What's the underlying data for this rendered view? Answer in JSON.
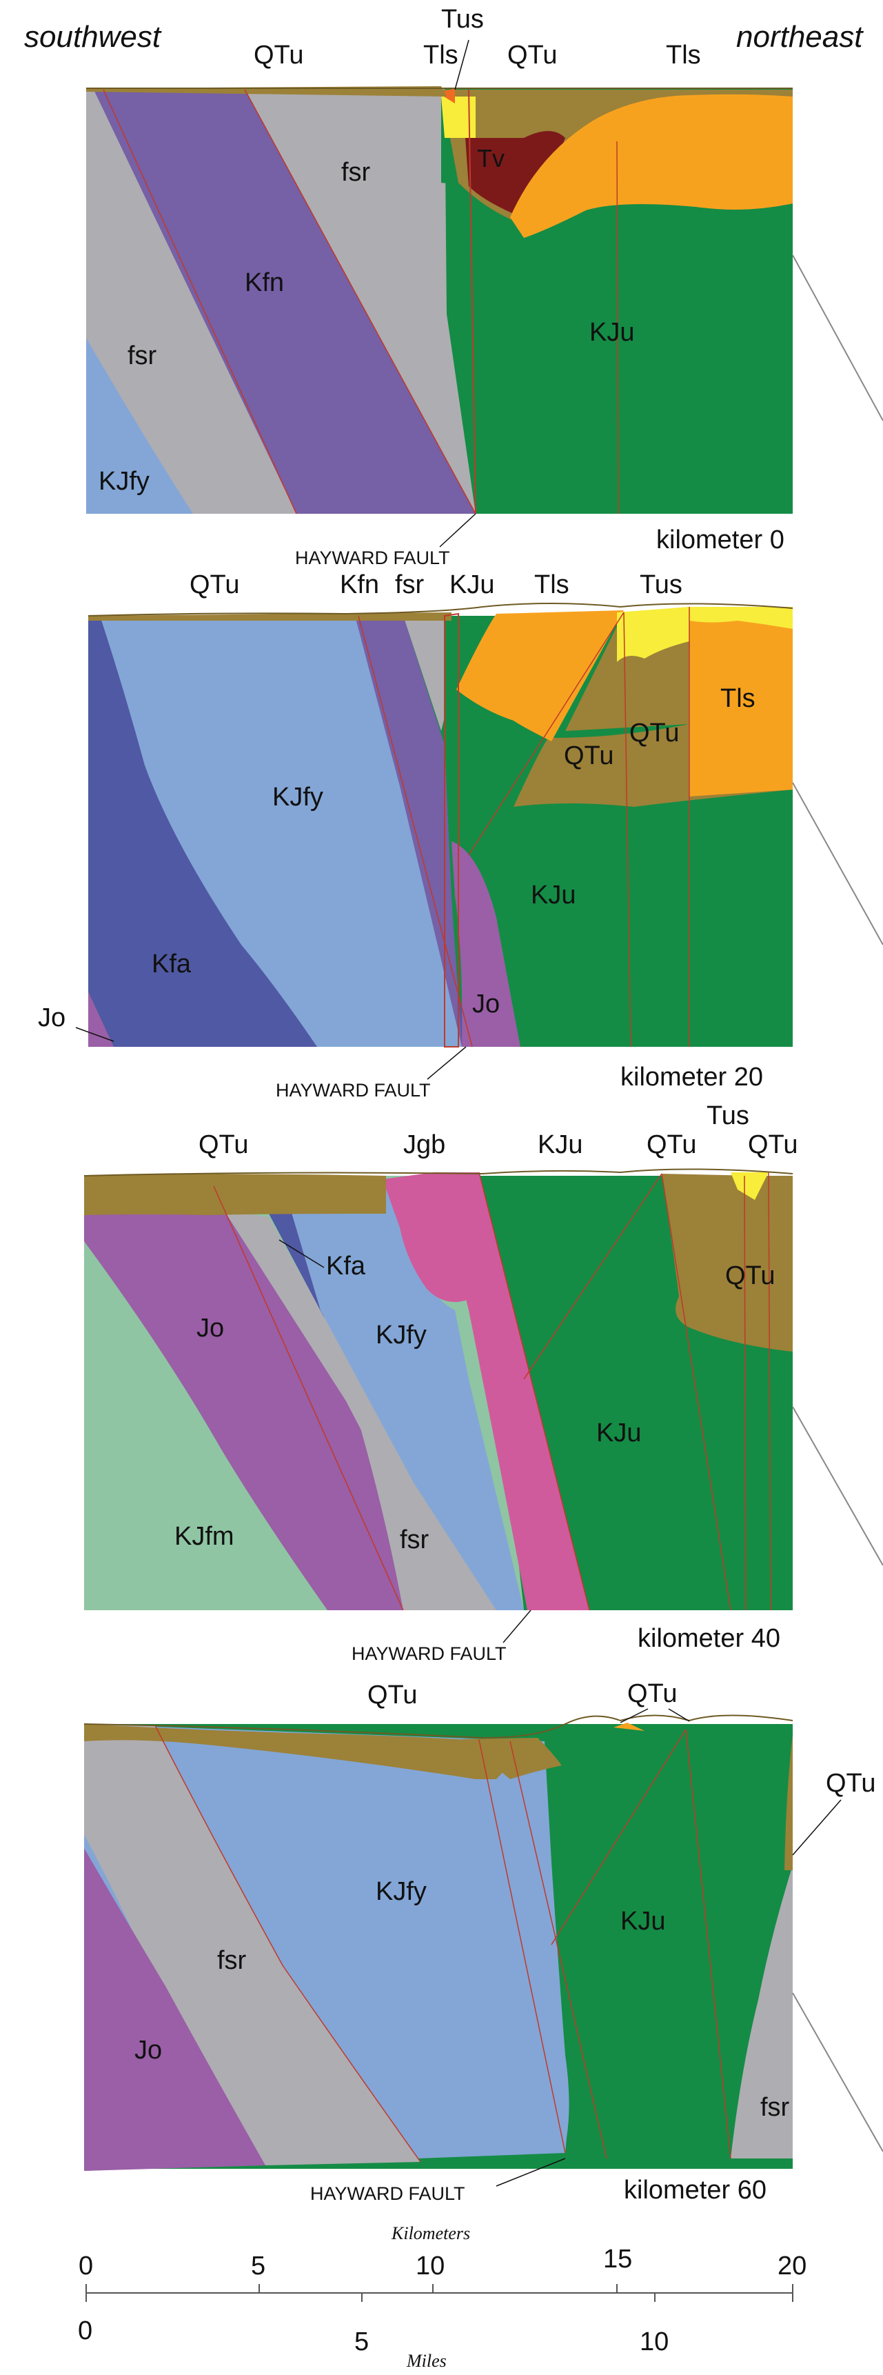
{
  "orientation": {
    "southwest": "southwest",
    "northeast": "northeast"
  },
  "colors": {
    "QTu": "#9c8138",
    "Tus": "#f8ed3a",
    "Tls": "#f7a21f",
    "Tv": "#7c1a1a",
    "KJu": "#148c45",
    "fsr": "#aeadb2",
    "Kfn": "#7660a6",
    "KJfy": "#83a6d6",
    "Kfa": "#5059a3",
    "Jo": "#9a5fa6",
    "Jgb": "#cf5b9c",
    "KJfm": "#8fc5a3",
    "orange_unit": "#f06b22",
    "fault": "#c0392b"
  },
  "sections": [
    {
      "caption": "kilometer 0",
      "fault_label": "HAYWARD FAULT",
      "top_labels": [
        "QTu",
        "Tus",
        "Tls",
        "QTu",
        "Tls"
      ],
      "unit_labels": [
        "fsr",
        "Kfn",
        "fsr",
        "KJfy",
        "Tv",
        "KJu"
      ]
    },
    {
      "caption": "kilometer 20",
      "fault_label": "HAYWARD FAULT",
      "top_labels": [
        "QTu",
        "Kfn",
        "fsr",
        "KJu",
        "Tls",
        "Tus"
      ],
      "unit_labels": [
        "KJfy",
        "Kfa",
        "Jo",
        "KJu",
        "QTu",
        "QTu",
        "Tls"
      ],
      "side_label": "Jo"
    },
    {
      "caption": "kilometer 40",
      "fault_label": "HAYWARD FAULT",
      "top_labels": [
        "QTu",
        "Jgb",
        "KJu",
        "QTu",
        "Tus",
        "QTu"
      ],
      "unit_labels": [
        "Kfa",
        "Jo",
        "KJfy",
        "KJfm",
        "fsr",
        "KJu",
        "QTu"
      ]
    },
    {
      "caption": "kilometer 60",
      "fault_label": "HAYWARD FAULT",
      "top_labels": [
        "QTu",
        "QTu"
      ],
      "unit_labels": [
        "KJfy",
        "KJu",
        "fsr",
        "Jo",
        "fsr"
      ],
      "side_label": "QTu"
    }
  ],
  "scale": {
    "km_title": "Kilometers",
    "km_ticks": [
      "0",
      "5",
      "10",
      "15",
      "20"
    ],
    "mi_title": "Miles",
    "mi_ticks": [
      "0",
      "5",
      "10"
    ]
  }
}
